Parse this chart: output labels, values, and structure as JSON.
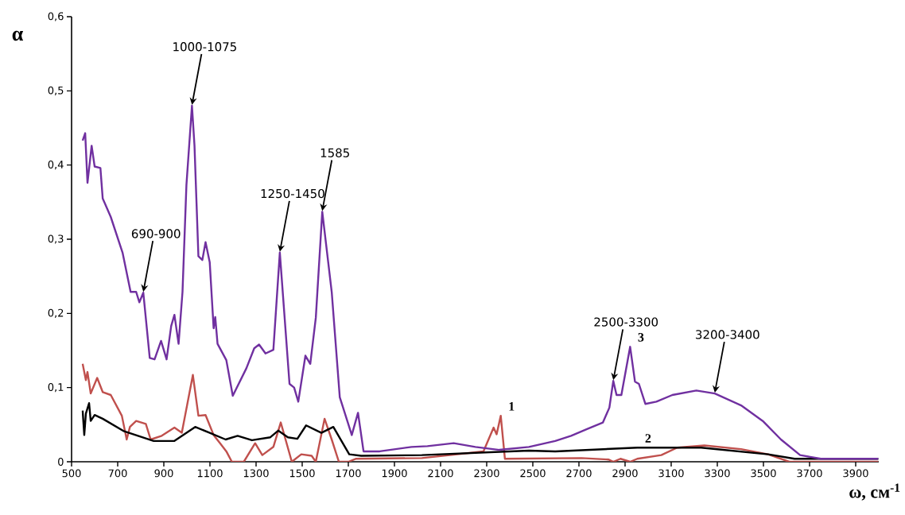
{
  "chart_data": {
    "type": "line",
    "xlabel": "ω, см$^{-1}$",
    "ylabel": "α",
    "xlim": [
      500,
      4000
    ],
    "ylim": [
      0,
      0.6
    ],
    "xticks": [
      500,
      700,
      900,
      1100,
      1300,
      1500,
      1700,
      1900,
      2100,
      2300,
      2500,
      2700,
      2900,
      3100,
      3300,
      3500,
      3700,
      3900
    ],
    "yticks": [
      {
        "value": 0,
        "label": "0"
      },
      {
        "value": 0.1,
        "label": "0,1"
      },
      {
        "value": 0.2,
        "label": "0,2"
      },
      {
        "value": 0.3,
        "label": "0,3"
      },
      {
        "value": 0.4,
        "label": "0,4"
      },
      {
        "value": 0.5,
        "label": "0,5"
      },
      {
        "value": 0.6,
        "label": "0,6"
      }
    ],
    "grid": false,
    "legend": false,
    "marker": "none",
    "line_style": "solid",
    "series": [
      {
        "name": "1",
        "color": "#c0504d",
        "x": [
          548,
          562,
          569,
          583,
          611,
          635,
          670,
          718,
          739,
          753,
          780,
          822,
          843,
          891,
          946,
          978,
          1026,
          1050,
          1081,
          1116,
          1144,
          1171,
          1195,
          1247,
          1296,
          1327,
          1375,
          1407,
          1455,
          1496,
          1541,
          1559,
          1597,
          1628,
          1659,
          1700,
          1732,
          2019,
          2286,
          2330,
          2343,
          2361,
          2379,
          2711,
          2828,
          2849,
          2880,
          2922,
          2953,
          3057,
          3126,
          3244,
          3403,
          3520,
          3612,
          3998
        ],
        "values": [
          0.132,
          0.11,
          0.121,
          0.092,
          0.113,
          0.094,
          0.09,
          0.062,
          0.03,
          0.047,
          0.055,
          0.051,
          0.03,
          0.035,
          0.046,
          0.039,
          0.117,
          0.062,
          0.063,
          0.036,
          0.025,
          0.014,
          0,
          0,
          0.025,
          0.009,
          0.02,
          0.053,
          0,
          0.01,
          0.008,
          0,
          0.058,
          0.03,
          0,
          0,
          0.004,
          0.005,
          0.014,
          0.046,
          0.037,
          0.062,
          0.004,
          0.005,
          0.003,
          0,
          0.004,
          0,
          0.004,
          0.009,
          0.019,
          0.022,
          0.017,
          0.01,
          0,
          0
        ]
      },
      {
        "name": "2",
        "color": "#000000",
        "x": [
          548,
          555,
          562,
          576,
          583,
          600,
          635,
          728,
          856,
          946,
          1036,
          1099,
          1168,
          1220,
          1282,
          1362,
          1396,
          1438,
          1479,
          1517,
          1583,
          1635,
          1704,
          1756,
          2019,
          2483,
          2597,
          2953,
          3230,
          3520,
          3635,
          3998
        ],
        "values": [
          0.069,
          0.036,
          0.065,
          0.079,
          0.055,
          0.063,
          0.058,
          0.041,
          0.028,
          0.028,
          0.047,
          0.039,
          0.03,
          0.035,
          0.029,
          0.033,
          0.042,
          0.033,
          0.031,
          0.049,
          0.039,
          0.047,
          0.01,
          0.008,
          0.009,
          0.015,
          0.014,
          0.019,
          0.019,
          0.01,
          0.004,
          0.004
        ]
      },
      {
        "name": "3",
        "color": "#7030a0",
        "x": [
          548,
          559,
          569,
          587,
          600,
          625,
          635,
          670,
          721,
          756,
          780,
          794,
          811,
          839,
          860,
          888,
          912,
          932,
          946,
          964,
          981,
          998,
          1022,
          1033,
          1050,
          1067,
          1081,
          1099,
          1116,
          1123,
          1133,
          1171,
          1199,
          1258,
          1292,
          1313,
          1341,
          1375,
          1403,
          1445,
          1465,
          1483,
          1514,
          1535,
          1559,
          1587,
          1628,
          1663,
          1715,
          1742,
          1766,
          1836,
          1974,
          2043,
          2157,
          2251,
          2355,
          2483,
          2597,
          2666,
          2735,
          2804,
          2832,
          2849,
          2863,
          2884,
          2922,
          2943,
          2960,
          2988,
          3036,
          3105,
          3209,
          3289,
          3403,
          3497,
          3576,
          3659,
          3749,
          3998
        ],
        "values": [
          0.433,
          0.443,
          0.376,
          0.426,
          0.398,
          0.396,
          0.355,
          0.33,
          0.282,
          0.229,
          0.229,
          0.215,
          0.228,
          0.14,
          0.138,
          0.163,
          0.138,
          0.183,
          0.198,
          0.159,
          0.229,
          0.373,
          0.48,
          0.426,
          0.277,
          0.272,
          0.296,
          0.269,
          0.18,
          0.195,
          0.159,
          0.137,
          0.089,
          0.126,
          0.153,
          0.158,
          0.146,
          0.151,
          0.282,
          0.105,
          0.1,
          0.081,
          0.143,
          0.132,
          0.194,
          0.337,
          0.229,
          0.087,
          0.036,
          0.066,
          0.014,
          0.014,
          0.02,
          0.021,
          0.025,
          0.02,
          0.016,
          0.02,
          0.028,
          0.035,
          0.044,
          0.053,
          0.073,
          0.109,
          0.09,
          0.09,
          0.155,
          0.108,
          0.105,
          0.078,
          0.081,
          0.09,
          0.096,
          0.092,
          0.076,
          0.055,
          0.03,
          0.009,
          0.004,
          0.004
        ]
      }
    ],
    "annotations": [
      {
        "text": "690-900",
        "x": 811,
        "y": 0.228
      },
      {
        "text": "1000-1075",
        "x": 1022,
        "y": 0.48
      },
      {
        "text": "1250-1450",
        "x": 1403,
        "y": 0.282
      },
      {
        "text": "1585",
        "x": 1587,
        "y": 0.337
      },
      {
        "text": "2500-3300",
        "x": 2849,
        "y": 0.109
      },
      {
        "text": "3200-3400",
        "x": 3289,
        "y": 0.092
      }
    ]
  }
}
